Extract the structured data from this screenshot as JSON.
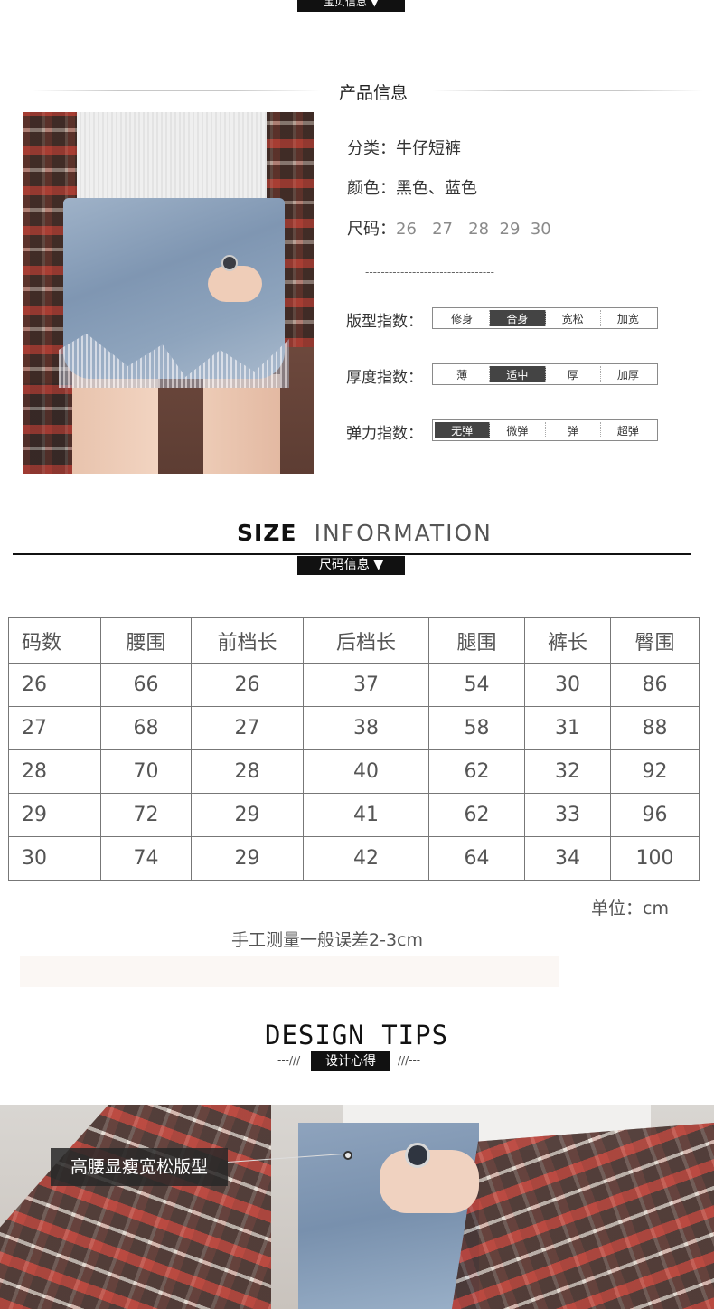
{
  "top_tag": {
    "label": "宝贝信息 ▼"
  },
  "product_section": {
    "title": "产品信息"
  },
  "product_info": {
    "category_label": "分类：",
    "category_value": "牛仔短裤",
    "color_label": "颜色：",
    "color_value": "黑色、蓝色",
    "size_label": "尺码：",
    "sizes": "26   27   28  29  30",
    "dash": "---------------------------------"
  },
  "indices": [
    {
      "label": "版型指数：",
      "options": [
        "修身",
        "合身",
        "宽松",
        "加宽"
      ],
      "active": "合身"
    },
    {
      "label": "厚度指数：",
      "options": [
        "薄",
        "适中",
        "厚",
        "加厚"
      ],
      "active": "适中"
    },
    {
      "label": "弹力指数：",
      "options": [
        "无弹",
        "微弹",
        "弹",
        "超弹"
      ],
      "active": "无弹"
    }
  ],
  "size_header": {
    "bold": "SIZE",
    "light": "INFORMATION",
    "tag": "尺码信息 ▼"
  },
  "size_table": {
    "headers": [
      "码数",
      "腰围",
      "前档长",
      "后档长",
      "腿围",
      "裤长",
      "臀围"
    ],
    "rows": [
      [
        "26",
        "66",
        "26",
        "37",
        "54",
        "30",
        "86"
      ],
      [
        "27",
        "68",
        "27",
        "38",
        "58",
        "31",
        "88"
      ],
      [
        "28",
        "70",
        "28",
        "40",
        "62",
        "32",
        "92"
      ],
      [
        "29",
        "72",
        "29",
        "41",
        "62",
        "33",
        "96"
      ],
      [
        "30",
        "74",
        "29",
        "42",
        "64",
        "34",
        "100"
      ]
    ]
  },
  "unit_text": "单位：cm",
  "note_text": "手工测量一般误差2-3cm",
  "design": {
    "title": "DESIGN TIPS",
    "deco_left": "---///",
    "tag": "设计心得",
    "deco_right": "///---"
  },
  "bottom_photo": {
    "label": "高腰显瘦宽松版型"
  }
}
